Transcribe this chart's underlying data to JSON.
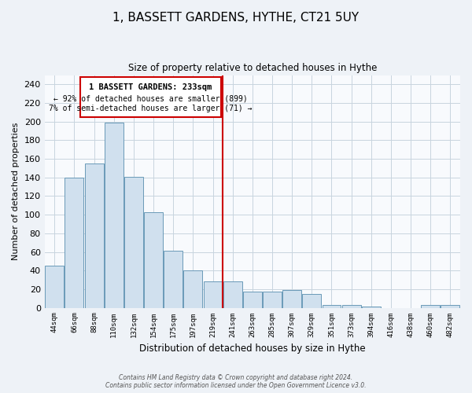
{
  "title": "1, BASSETT GARDENS, HYTHE, CT21 5UY",
  "subtitle": "Size of property relative to detached houses in Hythe",
  "xlabel": "Distribution of detached houses by size in Hythe",
  "ylabel": "Number of detached properties",
  "bin_labels": [
    "44sqm",
    "66sqm",
    "88sqm",
    "110sqm",
    "132sqm",
    "154sqm",
    "175sqm",
    "197sqm",
    "219sqm",
    "241sqm",
    "263sqm",
    "285sqm",
    "307sqm",
    "329sqm",
    "351sqm",
    "373sqm",
    "394sqm",
    "416sqm",
    "438sqm",
    "460sqm",
    "482sqm"
  ],
  "bar_values": [
    45,
    140,
    155,
    199,
    141,
    103,
    61,
    40,
    28,
    28,
    17,
    17,
    19,
    15,
    3,
    3,
    1,
    0,
    0,
    3,
    3
  ],
  "bar_color": "#d0e0ee",
  "bar_edge_color": "#6a9ab8",
  "marker_index": 9,
  "marker_label": "1 BASSETT GARDENS: 233sqm",
  "annotation_line1": "← 92% of detached houses are smaller (899)",
  "annotation_line2": "7% of semi-detached houses are larger (71) →",
  "marker_color": "#cc0000",
  "ylim": [
    0,
    250
  ],
  "yticks": [
    0,
    20,
    40,
    60,
    80,
    100,
    120,
    140,
    160,
    180,
    200,
    220,
    240
  ],
  "footer_line1": "Contains HM Land Registry data © Crown copyright and database right 2024.",
  "footer_line2": "Contains public sector information licensed under the Open Government Licence v3.0.",
  "bg_color": "#eef2f7",
  "plot_bg_color": "#f8fafd",
  "grid_color": "#c8d4df"
}
